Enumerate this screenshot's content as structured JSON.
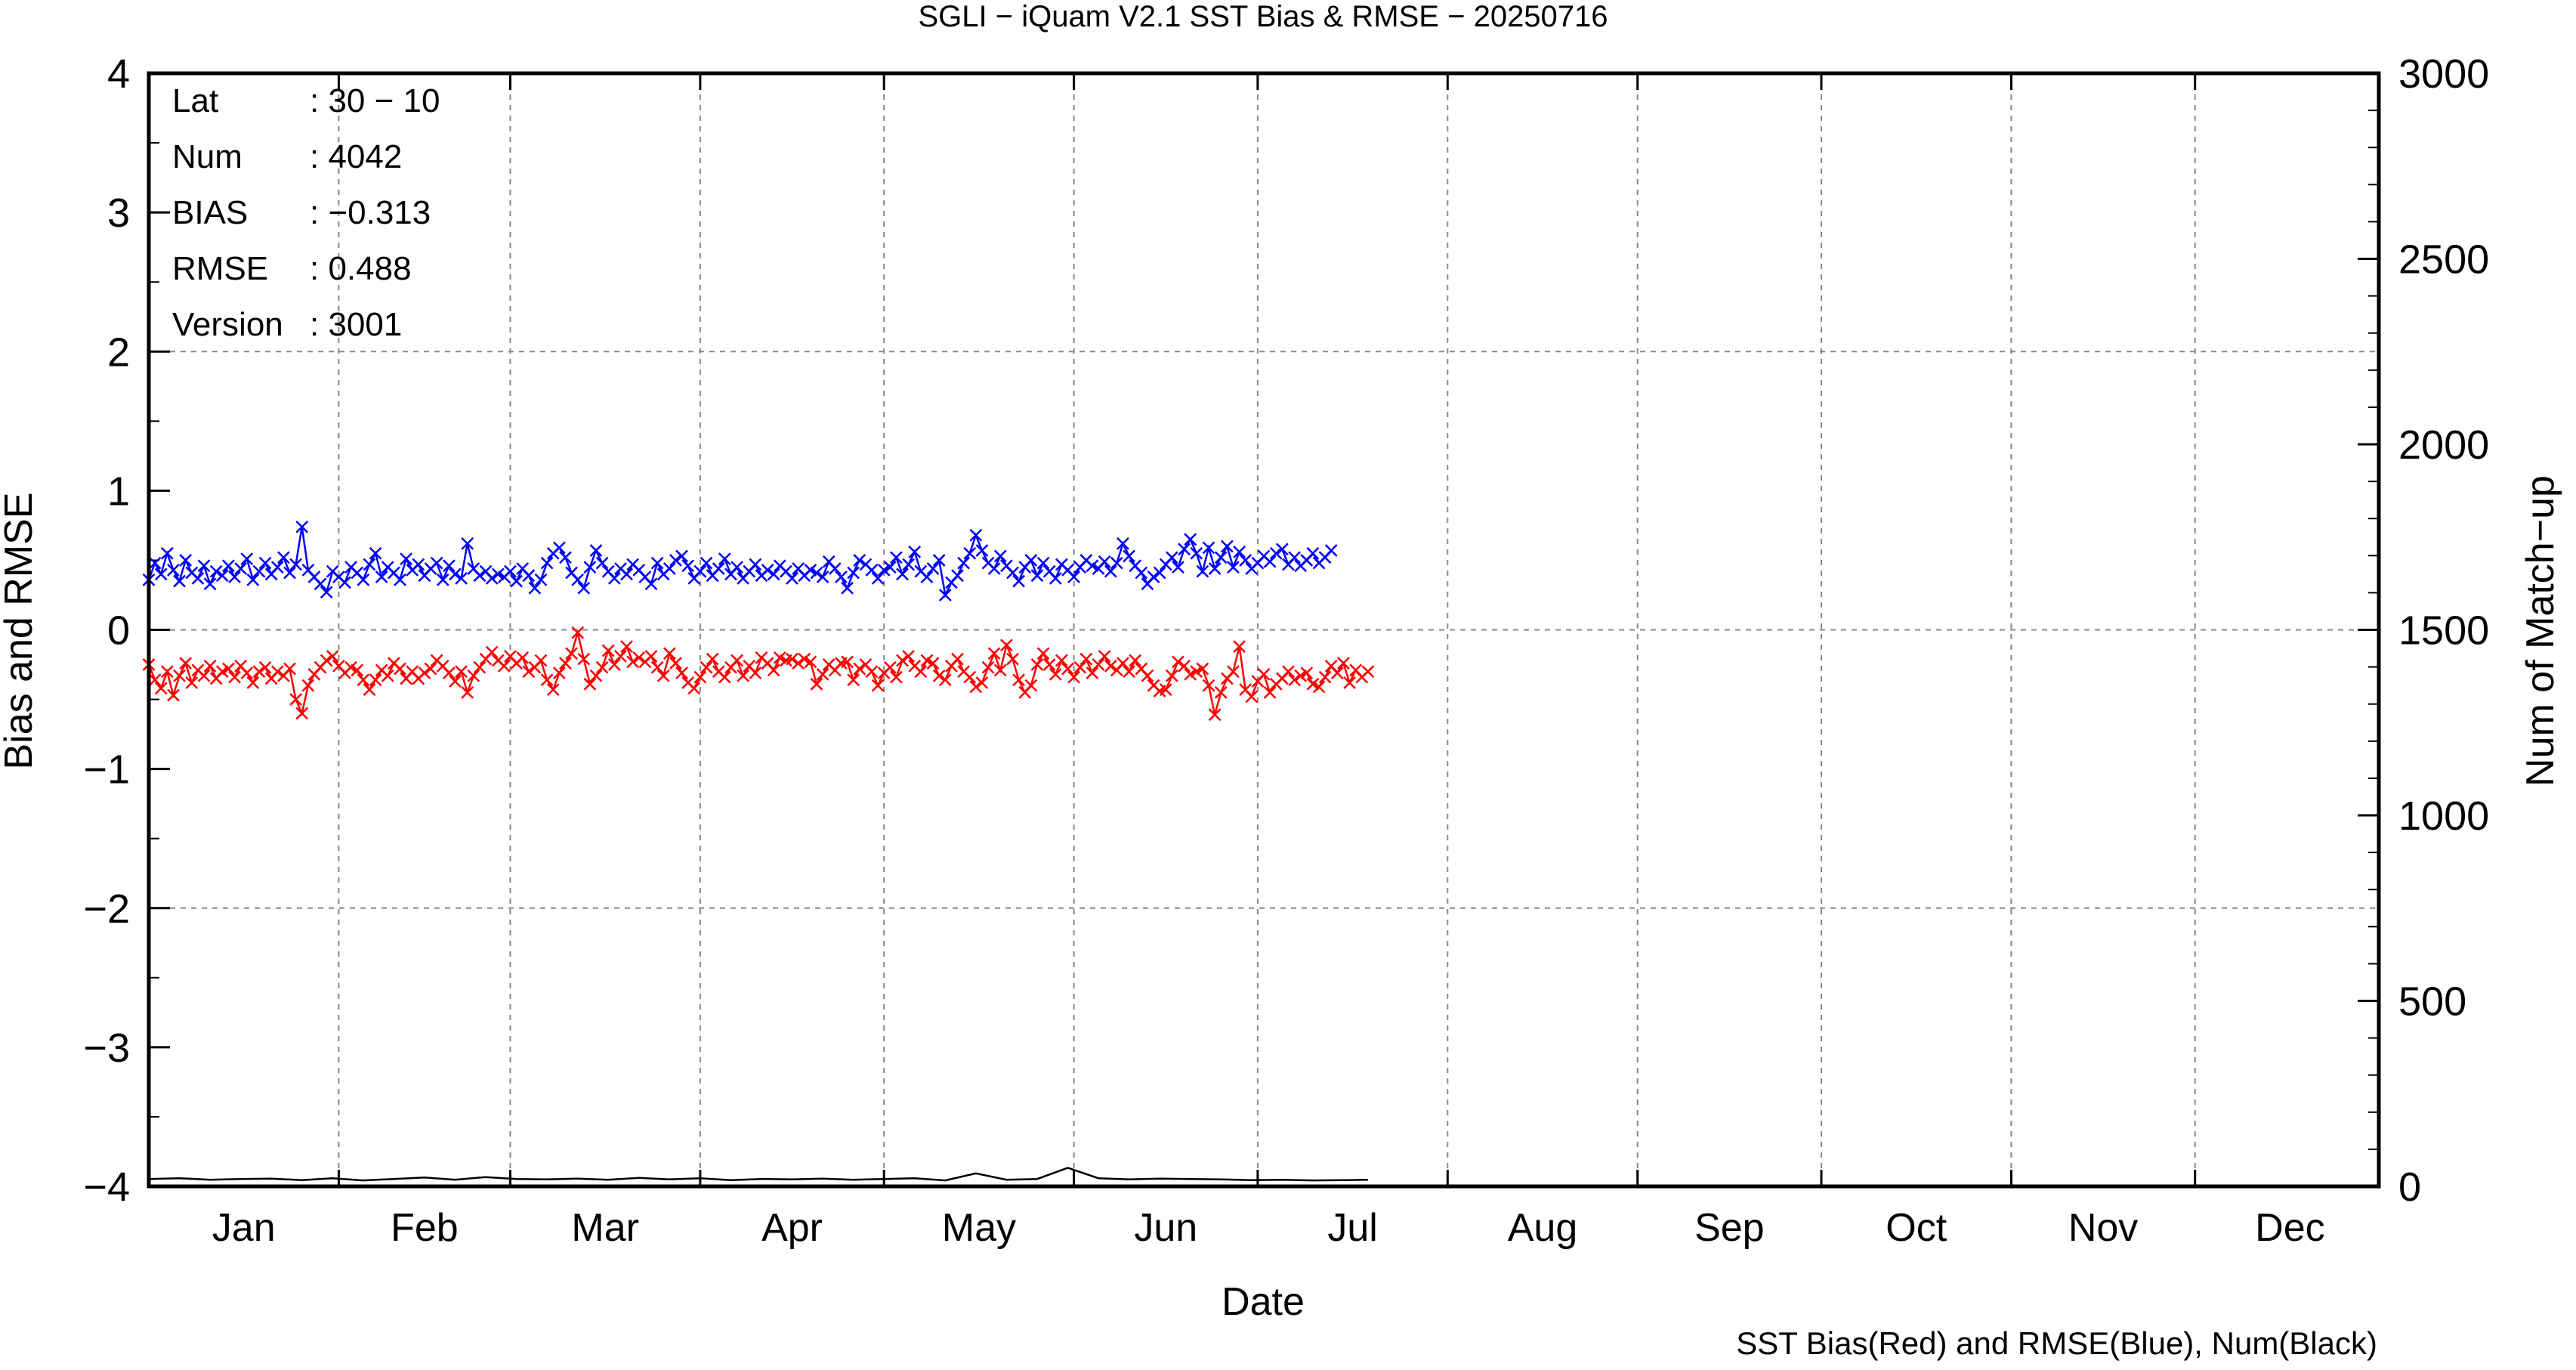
{
  "chart_data": {
    "type": "line",
    "title": "SGLI − iQuam V2.1 SST Bias & RMSE  − 20250716",
    "xlabel": "Date",
    "ylabel_left": "Bias and RMSE",
    "ylabel_right": "Num of Match−up",
    "footer": "SST Bias(Red) and RMSE(Blue), Num(Black)",
    "grid": true,
    "x_tick_labels": [
      "Jan",
      "Feb",
      "Mar",
      "Apr",
      "May",
      "Jun",
      "Jul",
      "Aug",
      "Sep",
      "Oct",
      "Nov",
      "Dec"
    ],
    "x_range_days": [
      1,
      365
    ],
    "ylim_left": [
      -4,
      4
    ],
    "ylim_right": [
      0,
      3000
    ],
    "y_ticks_left": [
      "4",
      "3",
      "2",
      "1",
      "0",
      "−1",
      "−2",
      "−3",
      "−4"
    ],
    "y_ticks_right": [
      "3000",
      "2500",
      "2000",
      "1500",
      "1000",
      "500",
      "0"
    ],
    "info": [
      {
        "label": "Lat",
        "value": ": 30 − 10"
      },
      {
        "label": "Num",
        "value": ": 4042"
      },
      {
        "label": "BIAS",
        "value": ": −0.313"
      },
      {
        "label": "RMSE",
        "value": ": 0.488"
      },
      {
        "label": "Version",
        "value": ": 3001"
      }
    ],
    "series": [
      {
        "name": "Bias",
        "color": "#ff0000",
        "axis": "left",
        "day": [
          1,
          2,
          3,
          4,
          5,
          6,
          7,
          8,
          9,
          10,
          11,
          12,
          13,
          14,
          15,
          16,
          17,
          18,
          19,
          20,
          21,
          22,
          23,
          24,
          25,
          26,
          27,
          28,
          29,
          30,
          31,
          32,
          33,
          34,
          35,
          36,
          37,
          38,
          39,
          40,
          41,
          42,
          43,
          44,
          45,
          46,
          47,
          48,
          49,
          50,
          51,
          52,
          53,
          54,
          55,
          56,
          57,
          58,
          59,
          60,
          61,
          62,
          63,
          64,
          65,
          66,
          67,
          68,
          69,
          70,
          71,
          72,
          73,
          74,
          75,
          76,
          77,
          78,
          79,
          80,
          81,
          82,
          83,
          84,
          85,
          86,
          87,
          88,
          89,
          90,
          91,
          92,
          93,
          94,
          95,
          96,
          97,
          98,
          99,
          100,
          101,
          102,
          103,
          104,
          105,
          106,
          107,
          108,
          109,
          110,
          111,
          112,
          113,
          114,
          115,
          116,
          117,
          118,
          119,
          120,
          121,
          122,
          123,
          124,
          125,
          126,
          127,
          128,
          129,
          130,
          131,
          132,
          133,
          134,
          135,
          136,
          137,
          138,
          139,
          140,
          141,
          142,
          143,
          144,
          145,
          146,
          147,
          148,
          149,
          150,
          151,
          152,
          153,
          154,
          155,
          156,
          157,
          158,
          159,
          160,
          161,
          162,
          163,
          164,
          165,
          166,
          167,
          168,
          169,
          170,
          171,
          172,
          173,
          174,
          175,
          176,
          177,
          178,
          179,
          180,
          181,
          182,
          183,
          184,
          185,
          186,
          187,
          188,
          189,
          190,
          191,
          192,
          193,
          194,
          195,
          196,
          197,
          198,
          199,
          200
        ],
        "values": [
          -0.25,
          -0.36,
          -0.42,
          -0.3,
          -0.47,
          -0.33,
          -0.24,
          -0.38,
          -0.29,
          -0.33,
          -0.26,
          -0.35,
          -0.3,
          -0.28,
          -0.34,
          -0.26,
          -0.31,
          -0.38,
          -0.3,
          -0.27,
          -0.35,
          -0.3,
          -0.33,
          -0.28,
          -0.5,
          -0.6,
          -0.4,
          -0.32,
          -0.27,
          -0.22,
          -0.19,
          -0.26,
          -0.31,
          -0.27,
          -0.29,
          -0.36,
          -0.43,
          -0.36,
          -0.29,
          -0.33,
          -0.24,
          -0.28,
          -0.35,
          -0.3,
          -0.35,
          -0.31,
          -0.28,
          -0.22,
          -0.26,
          -0.31,
          -0.37,
          -0.3,
          -0.45,
          -0.33,
          -0.27,
          -0.21,
          -0.16,
          -0.22,
          -0.26,
          -0.19,
          -0.24,
          -0.2,
          -0.3,
          -0.27,
          -0.22,
          -0.36,
          -0.43,
          -0.31,
          -0.24,
          -0.17,
          -0.02,
          -0.21,
          -0.39,
          -0.33,
          -0.27,
          -0.15,
          -0.25,
          -0.19,
          -0.12,
          -0.23,
          -0.2,
          -0.23,
          -0.19,
          -0.27,
          -0.33,
          -0.17,
          -0.24,
          -0.31,
          -0.38,
          -0.42,
          -0.34,
          -0.27,
          -0.21,
          -0.3,
          -0.34,
          -0.27,
          -0.22,
          -0.33,
          -0.26,
          -0.31,
          -0.2,
          -0.24,
          -0.29,
          -0.2,
          -0.22,
          -0.21,
          -0.24,
          -0.21,
          -0.23,
          -0.39,
          -0.32,
          -0.25,
          -0.29,
          -0.24,
          -0.23,
          -0.36,
          -0.28,
          -0.25,
          -0.3,
          -0.4,
          -0.31,
          -0.27,
          -0.34,
          -0.22,
          -0.19,
          -0.26,
          -0.3,
          -0.22,
          -0.24,
          -0.33,
          -0.36,
          -0.26,
          -0.21,
          -0.3,
          -0.34,
          -0.41,
          -0.38,
          -0.27,
          -0.17,
          -0.29,
          -0.11,
          -0.21,
          -0.36,
          -0.45,
          -0.4,
          -0.25,
          -0.17,
          -0.25,
          -0.32,
          -0.22,
          -0.28,
          -0.34,
          -0.27,
          -0.21,
          -0.31,
          -0.25,
          -0.19,
          -0.26,
          -0.29,
          -0.24,
          -0.3,
          -0.22,
          -0.28,
          -0.33,
          -0.4,
          -0.44,
          -0.43,
          -0.33,
          -0.23,
          -0.26,
          -0.32,
          -0.3,
          -0.28,
          -0.4,
          -0.61,
          -0.45,
          -0.35,
          -0.3,
          -0.12,
          -0.43,
          -0.48,
          -0.37,
          -0.32,
          -0.45,
          -0.39,
          -0.35,
          -0.3,
          -0.36,
          -0.33,
          -0.31,
          -0.39,
          -0.41,
          -0.34,
          -0.26,
          -0.31,
          -0.24,
          -0.38,
          -0.29,
          -0.34,
          -0.3
        ],
        "data_note": "approximate daily values, roughly days 1-200"
      },
      {
        "name": "RMSE",
        "color": "#0000ff",
        "axis": "left",
        "day": [
          1,
          2,
          3,
          4,
          5,
          6,
          7,
          8,
          9,
          10,
          11,
          12,
          13,
          14,
          15,
          16,
          17,
          18,
          19,
          20,
          21,
          22,
          23,
          24,
          25,
          26,
          27,
          28,
          29,
          30,
          31,
          32,
          33,
          34,
          35,
          36,
          37,
          38,
          39,
          40,
          41,
          42,
          43,
          44,
          45,
          46,
          47,
          48,
          49,
          50,
          51,
          52,
          53,
          54,
          55,
          56,
          57,
          58,
          59,
          60,
          61,
          62,
          63,
          64,
          65,
          66,
          67,
          68,
          69,
          70,
          71,
          72,
          73,
          74,
          75,
          76,
          77,
          78,
          79,
          80,
          81,
          82,
          83,
          84,
          85,
          86,
          87,
          88,
          89,
          90,
          91,
          92,
          93,
          94,
          95,
          96,
          97,
          98,
          99,
          100,
          101,
          102,
          103,
          104,
          105,
          106,
          107,
          108,
          109,
          110,
          111,
          112,
          113,
          114,
          115,
          116,
          117,
          118,
          119,
          120,
          121,
          122,
          123,
          124,
          125,
          126,
          127,
          128,
          129,
          130,
          131,
          132,
          133,
          134,
          135,
          136,
          137,
          138,
          139,
          140,
          141,
          142,
          143,
          144,
          145,
          146,
          147,
          148,
          149,
          150,
          151,
          152,
          153,
          154,
          155,
          156,
          157,
          158,
          159,
          160,
          161,
          162,
          163,
          164,
          165,
          166,
          167,
          168,
          169,
          170,
          171,
          172,
          173,
          174,
          175,
          176,
          177,
          178,
          179,
          180,
          181,
          182,
          183,
          184,
          185,
          186,
          187,
          188,
          189,
          190,
          191,
          192,
          193,
          194,
          195,
          196,
          197,
          198,
          199,
          200
        ],
        "values": [
          0.36,
          0.48,
          0.4,
          0.55,
          0.43,
          0.35,
          0.5,
          0.41,
          0.37,
          0.46,
          0.33,
          0.42,
          0.39,
          0.46,
          0.38,
          0.44,
          0.51,
          0.36,
          0.42,
          0.48,
          0.4,
          0.45,
          0.52,
          0.41,
          0.47,
          0.74,
          0.43,
          0.38,
          0.33,
          0.27,
          0.42,
          0.38,
          0.34,
          0.45,
          0.41,
          0.36,
          0.47,
          0.55,
          0.38,
          0.45,
          0.41,
          0.36,
          0.51,
          0.43,
          0.47,
          0.39,
          0.44,
          0.48,
          0.36,
          0.46,
          0.4,
          0.37,
          0.62,
          0.44,
          0.39,
          0.42,
          0.37,
          0.4,
          0.38,
          0.42,
          0.35,
          0.44,
          0.39,
          0.3,
          0.36,
          0.48,
          0.55,
          0.59,
          0.52,
          0.41,
          0.36,
          0.3,
          0.45,
          0.57,
          0.48,
          0.42,
          0.37,
          0.44,
          0.4,
          0.47,
          0.43,
          0.38,
          0.33,
          0.48,
          0.4,
          0.44,
          0.5,
          0.53,
          0.46,
          0.37,
          0.42,
          0.48,
          0.39,
          0.44,
          0.51,
          0.4,
          0.45,
          0.37,
          0.42,
          0.47,
          0.39,
          0.43,
          0.4,
          0.46,
          0.42,
          0.37,
          0.44,
          0.39,
          0.43,
          0.41,
          0.38,
          0.49,
          0.44,
          0.38,
          0.3,
          0.41,
          0.5,
          0.47,
          0.43,
          0.37,
          0.43,
          0.45,
          0.52,
          0.4,
          0.47,
          0.56,
          0.42,
          0.38,
          0.44,
          0.5,
          0.25,
          0.34,
          0.39,
          0.48,
          0.55,
          0.68,
          0.57,
          0.48,
          0.44,
          0.53,
          0.46,
          0.41,
          0.35,
          0.45,
          0.5,
          0.39,
          0.48,
          0.42,
          0.37,
          0.47,
          0.43,
          0.38,
          0.45,
          0.5,
          0.46,
          0.44,
          0.49,
          0.42,
          0.48,
          0.62,
          0.53,
          0.46,
          0.41,
          0.33,
          0.38,
          0.41,
          0.47,
          0.52,
          0.45,
          0.58,
          0.65,
          0.55,
          0.42,
          0.59,
          0.44,
          0.52,
          0.6,
          0.45,
          0.56,
          0.5,
          0.44,
          0.48,
          0.53,
          0.49,
          0.55,
          0.58,
          0.47,
          0.52,
          0.46,
          0.5,
          0.55,
          0.48,
          0.52,
          0.57
        ],
        "data_note": "approximate daily values, roughly days 1-200"
      },
      {
        "name": "Num",
        "color": "#000000",
        "axis": "right",
        "day": [
          1,
          6,
          11,
          16,
          21,
          26,
          31,
          36,
          41,
          46,
          51,
          56,
          61,
          66,
          71,
          76,
          81,
          86,
          91,
          96,
          101,
          106,
          111,
          116,
          121,
          126,
          131,
          136,
          141,
          146,
          151,
          156,
          161,
          166,
          171,
          176,
          181,
          186,
          191,
          196,
          200
        ],
        "values": [
          20,
          22,
          18,
          20,
          21,
          17,
          22,
          16,
          20,
          24,
          18,
          25,
          20,
          19,
          21,
          18,
          23,
          19,
          22,
          17,
          20,
          19,
          21,
          18,
          20,
          22,
          16,
          35,
          18,
          20,
          50,
          22,
          19,
          21,
          20,
          19,
          17,
          18,
          16,
          17,
          18
        ]
      }
    ]
  }
}
